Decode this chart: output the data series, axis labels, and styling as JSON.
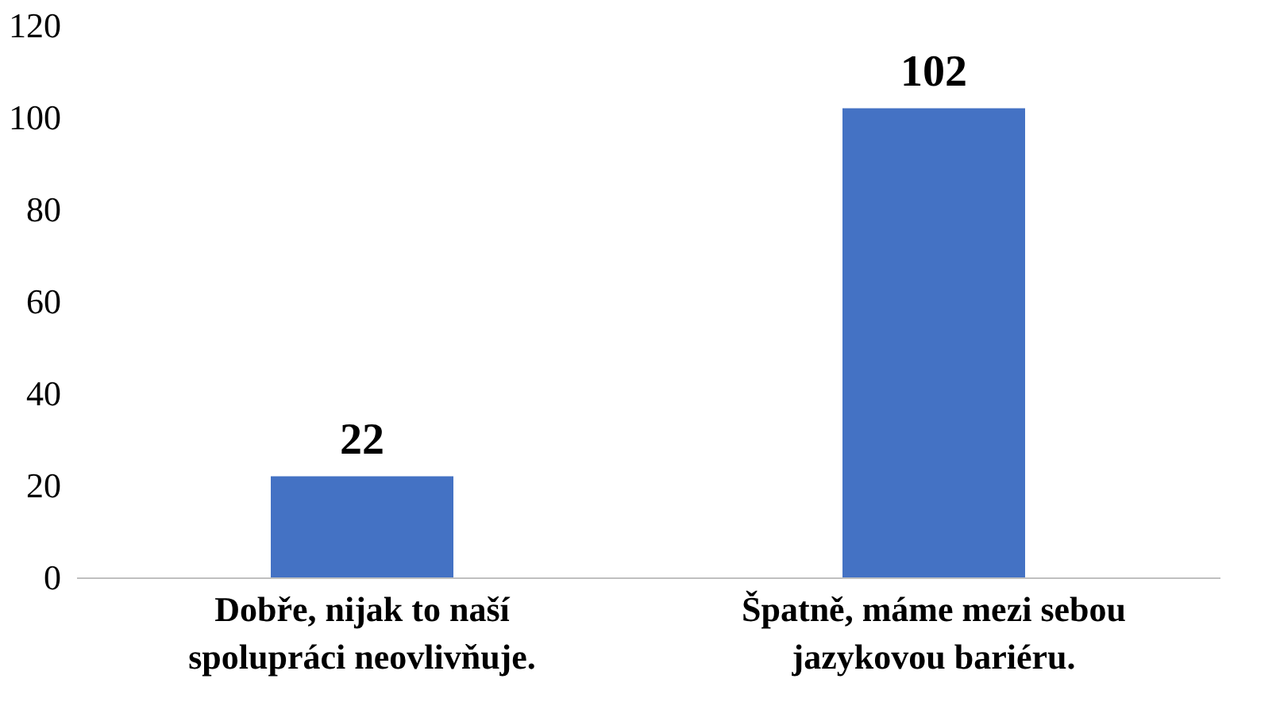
{
  "chart_data": {
    "type": "bar",
    "categories": [
      "Dobře, nijak to naší spolupráci neovlivňuje.",
      "Špatně, máme mezi sebou jazykovou bariéru."
    ],
    "values": [
      22,
      102
    ],
    "color": "#4472c4",
    "ylim": [
      0,
      120
    ],
    "yticks": [
      0,
      20,
      40,
      60,
      80,
      100,
      120
    ],
    "grid": false,
    "data_labels": true
  }
}
